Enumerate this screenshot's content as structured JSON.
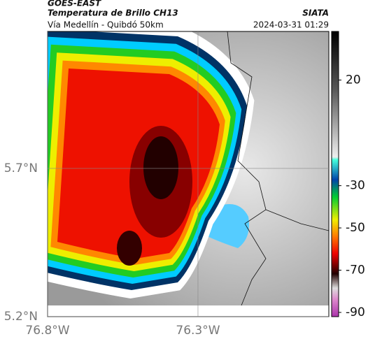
{
  "header": {
    "source": "GOES-EAST",
    "title": "Temperatura de Brillo CH13",
    "agency": "SIATA",
    "subtitle": "Vía Medellín - Quibdó 50km",
    "datetime": "2024-03-31 01:29"
  },
  "map": {
    "xlim": [
      -76.8,
      -75.865
    ],
    "ylim": [
      5.2,
      6.162
    ],
    "xticks": [
      {
        "value": -76.8,
        "label": "76.8°W"
      },
      {
        "value": -76.3,
        "label": "76.3°W"
      }
    ],
    "yticks": [
      {
        "value": 5.2,
        "label": "5.2°N"
      },
      {
        "value": 5.7,
        "label": "5.7°N"
      }
    ]
  },
  "colorbar": {
    "clim": [
      -92,
      43
    ],
    "ticks": [
      20,
      -30,
      -50,
      -70,
      -90
    ]
  }
}
